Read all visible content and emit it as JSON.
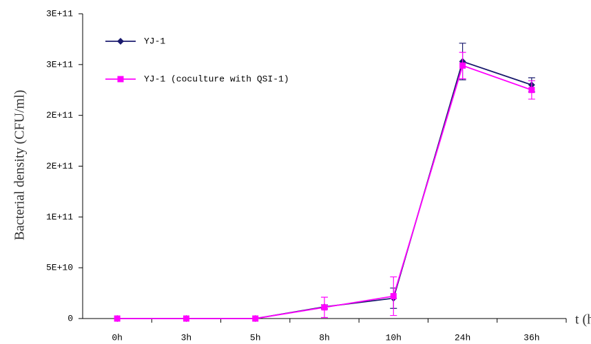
{
  "chart_data": {
    "type": "line",
    "y_label": "Bacterial density (CFU/ml)",
    "x_label": "t (h)",
    "categories": [
      "0h",
      "3h",
      "5h",
      "8h",
      "10h",
      "24h",
      "36h"
    ],
    "series": [
      {
        "name": "YJ-1",
        "color": "#1a1a6e",
        "marker": "diamond",
        "values": [
          0,
          0,
          0,
          11500000000,
          20000000000,
          253000000000,
          230000000000
        ],
        "errors": [
          0,
          0,
          0,
          2000000000,
          10000000000,
          18000000000,
          7000000000
        ]
      },
      {
        "name": "YJ-1 (coculture with QSI-1)",
        "color": "#ff00ff",
        "marker": "square",
        "values": [
          0,
          0,
          0,
          11000000000,
          22000000000,
          249000000000,
          225000000000
        ],
        "errors": [
          0,
          0,
          0,
          10000000000,
          19000000000,
          13000000000,
          9000000000
        ]
      }
    ],
    "ylim": [
      0,
      300000000000
    ],
    "yticks": [
      0,
      {
        "value": 50000000000,
        "label": "5E+10"
      },
      {
        "value": 100000000000,
        "label": "1E+11"
      },
      {
        "value": 150000000000,
        "label": "2E+11"
      },
      {
        "value": 200000000000,
        "label": "2E+11"
      },
      {
        "value": 250000000000,
        "label": "3E+11"
      },
      {
        "value": 300000000000,
        "label": "3E+11"
      }
    ],
    "legend": "upper left"
  }
}
